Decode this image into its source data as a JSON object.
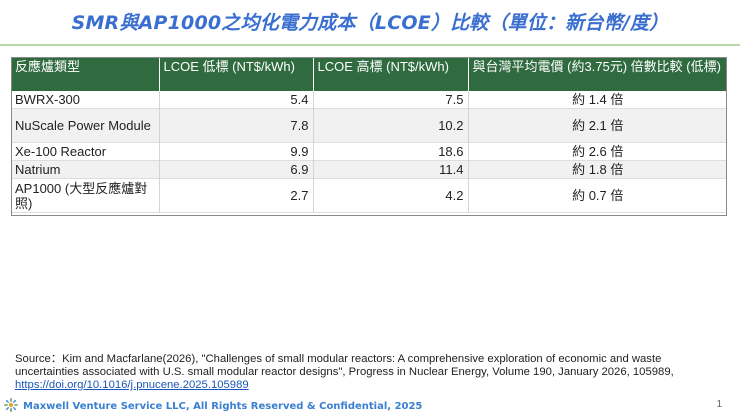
{
  "title": "SMR與AP1000之均化電力成本（LCOE）比較（單位：新台幣/度）",
  "table": {
    "headers": [
      "反應爐類型",
      "LCOE 低標 (NT$/kWh)",
      "LCOE 高標 (NT$/kWh)",
      "與台灣平均電價 (約3.75元) 倍數比較 (低標)"
    ],
    "rows": [
      {
        "type": "BWRX-300",
        "low": "5.4",
        "high": "7.5",
        "ratio": "約 1.4 倍"
      },
      {
        "type": "NuScale Power Module",
        "low": "7.8",
        "high": "10.2",
        "ratio": "約 2.1 倍"
      },
      {
        "type": "Xe-100 Reactor",
        "low": "9.9",
        "high": "18.6",
        "ratio": "約 2.6 倍"
      },
      {
        "type": "Natrium",
        "low": "6.9",
        "high": "11.4",
        "ratio": "約 1.8 倍"
      },
      {
        "type": "AP1000 (大型反應爐對照)",
        "low": "2.7",
        "high": "4.2",
        "ratio": "約 0.7 倍"
      }
    ]
  },
  "source": {
    "text": "Source：Kim and Macfarlane(2026), \"Challenges of small modular reactors: A comprehensive exploration of economic and waste uncertainties associated with U.S. small modular reactor designs\", Progress in Nuclear Energy, Volume 190, January 2026, 105989,",
    "link": "https://doi.org/10.1016/j.pnucene.2025.105989"
  },
  "footer": {
    "company": "Maxwell Venture Service LLC, All Rights Reserved & Confidential, 2025",
    "page": "1"
  },
  "colors": {
    "title": "#3a6fd0",
    "header_bg": "#2f6b3f",
    "rule": "#b9d7a6",
    "footer_text": "#3a7fd0"
  },
  "icons": {
    "logo": "sunburst-logo-icon"
  }
}
